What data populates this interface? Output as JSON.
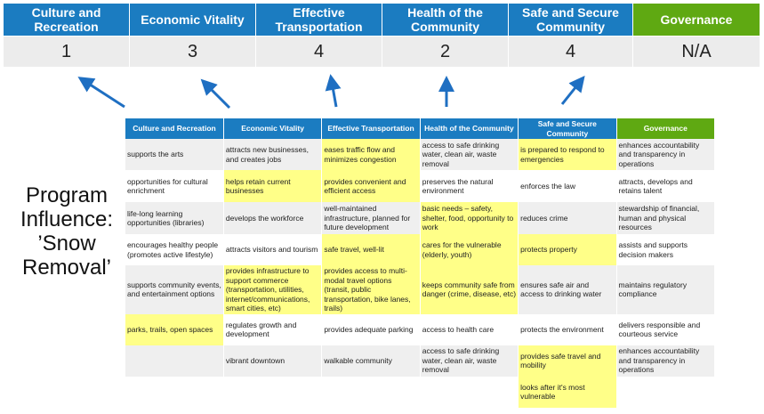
{
  "colors": {
    "header_blue": "#1b7cc1",
    "governance_green": "#5fa912",
    "highlight": "#ffff88",
    "arrow": "#1f6fc2"
  },
  "scores": [
    {
      "label": "Culture and Recreation",
      "value": "1"
    },
    {
      "label": "Economic Vitality",
      "value": "3"
    },
    {
      "label": "Effective Transportation",
      "value": "4"
    },
    {
      "label": "Health of the Community",
      "value": "2"
    },
    {
      "label": "Safe and Secure Community",
      "value": "4"
    },
    {
      "label": "Governance",
      "value": "N/A"
    }
  ],
  "program_label": "Program Influence: ’Snow Removal’",
  "table": {
    "headers": [
      "Culture and Recreation",
      "Economic Vitality",
      "Effective Transportation",
      "Health of the Community",
      "Safe and Secure Community",
      "Governance"
    ],
    "rows": [
      [
        {
          "t": "supports the arts"
        },
        {
          "t": "attracts new businesses, and creates jobs"
        },
        {
          "t": "eases traffic flow and minimizes congestion",
          "h": true
        },
        {
          "t": "access to safe drinking water, clean air, waste removal"
        },
        {
          "t": "is prepared to respond to emergencies",
          "h": true
        },
        {
          "t": "enhances accountability and transparency in operations"
        }
      ],
      [
        {
          "t": "opportunities for cultural enrichment"
        },
        {
          "t": "helps retain current businesses",
          "h": true
        },
        {
          "t": "provides convenient and efficient access",
          "h": true
        },
        {
          "t": "preserves the natural environment"
        },
        {
          "t": "enforces the law"
        },
        {
          "t": "attracts, develops and retains talent"
        }
      ],
      [
        {
          "t": "life-long learning opportunities (libraries)"
        },
        {
          "t": "develops the workforce"
        },
        {
          "t": "well-maintained infrastructure, planned for future development"
        },
        {
          "t": "basic needs – safety, shelter, food, opportunity to work",
          "h": true
        },
        {
          "t": "reduces crime"
        },
        {
          "t": "stewardship of financial, human and physical resources"
        }
      ],
      [
        {
          "t": "encourages healthy people (promotes active lifestyle)"
        },
        {
          "t": "attracts visitors and tourism"
        },
        {
          "t": "safe travel, well-lit",
          "h": true
        },
        {
          "t": "cares for the vulnerable (elderly, youth)",
          "h": true
        },
        {
          "t": "protects property",
          "h": true
        },
        {
          "t": "assists and supports decision makers"
        }
      ],
      [
        {
          "t": "supports community events, and entertainment options"
        },
        {
          "t": "provides infrastructure to support commerce (transportation, utilities, internet/communications, smart cities, etc)",
          "h": true
        },
        {
          "t": "provides access to multi-modal travel options (transit, public transportation, bike lanes, trails)",
          "h": true
        },
        {
          "t": "keeps community safe from danger (crime, disease, etc)",
          "h": true
        },
        {
          "t": "ensures safe air and access to drinking water"
        },
        {
          "t": "maintains regulatory compliance"
        }
      ],
      [
        {
          "t": "parks, trails, open spaces",
          "h": true
        },
        {
          "t": "regulates growth and development"
        },
        {
          "t": "provides adequate parking"
        },
        {
          "t": "access to health care"
        },
        {
          "t": "protects the environment"
        },
        {
          "t": "delivers responsible and courteous service"
        }
      ],
      [
        {
          "t": ""
        },
        {
          "t": "vibrant downtown"
        },
        {
          "t": "walkable community"
        },
        {
          "t": "access to safe drinking water, clean air, waste removal"
        },
        {
          "t": "provides safe travel and mobility",
          "h": true
        },
        {
          "t": "enhances accountability and transparency in operations"
        }
      ],
      [
        {
          "t": ""
        },
        {
          "t": ""
        },
        {
          "t": ""
        },
        {
          "t": ""
        },
        {
          "t": "looks after it's most vulnerable",
          "h": true
        },
        {
          "t": ""
        }
      ]
    ]
  }
}
